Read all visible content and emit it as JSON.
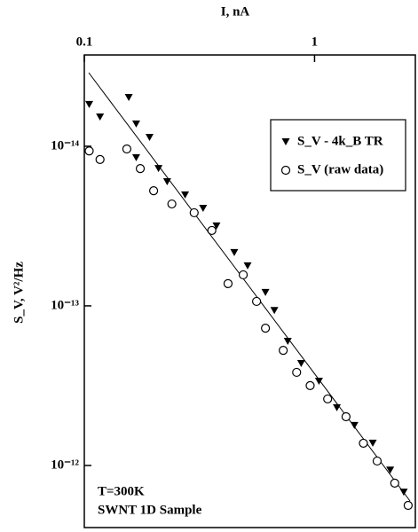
{
  "chart_data": {
    "type": "scatter",
    "x_label": "I, nA",
    "y_label": "S_V, V²/Hz",
    "annotations": [
      "T=300K",
      "SWNT 1D Sample"
    ],
    "log_x": true,
    "log_y": true,
    "legend": "upper right",
    "xlim": [
      0.1,
      2.74
    ],
    "xticks": [
      0.1,
      1
    ],
    "ylim": [
      2.68e-15,
      2.45e-12
    ],
    "yticks": [
      {
        "value": 1e-14,
        "label": "10⁻¹⁴"
      },
      {
        "value": 1e-13,
        "label": "10⁻¹³"
      },
      {
        "value": 1e-12,
        "label": "10⁻¹²"
      }
    ],
    "series": [
      {
        "name": "S_V - 4k_B TR",
        "color": "#000000",
        "marker": "triangle",
        "x": [
          0.105,
          0.117,
          0.156,
          0.168,
          0.192,
          0.168,
          0.21,
          0.229,
          0.274,
          0.328,
          0.375,
          0.448,
          0.512,
          0.612,
          0.669,
          0.765,
          0.875,
          1.045,
          1.25,
          1.49,
          1.79,
          2.13,
          2.44
        ],
        "values": [
          5.48e-15,
          6.56e-15,
          4.95e-15,
          7.26e-15,
          8.8e-15,
          1.18e-14,
          1.38e-14,
          1.67e-14,
          2.02e-14,
          2.45e-14,
          3.16e-14,
          4.64e-14,
          5.62e-14,
          8.25e-14,
          1.07e-13,
          1.67e-13,
          2.3e-13,
          2.97e-13,
          4.35e-13,
          5.62e-13,
          7.26e-13,
          1.07e-12,
          1.47e-12
        ]
      },
      {
        "name": "S_V (raw data)",
        "color": "#000000",
        "marker": "circle",
        "x": [
          0.105,
          0.117,
          0.153,
          0.175,
          0.2,
          0.24,
          0.3,
          0.358,
          0.421,
          0.49,
          0.56,
          0.612,
          0.731,
          0.836,
          0.957,
          1.14,
          1.37,
          1.63,
          1.87,
          2.23,
          2.55
        ],
        "values": [
          1.07e-14,
          1.21e-14,
          1.04e-14,
          1.38e-14,
          1.9e-14,
          2.3e-14,
          2.61e-14,
          3.37e-14,
          7.26e-14,
          6.39e-14,
          9.38e-14,
          1.38e-13,
          1.9e-13,
          2.61e-13,
          3.16e-13,
          3.83e-13,
          4.95e-13,
          7.26e-13,
          9.38e-13,
          1.29e-12,
          1.78e-12
        ]
      }
    ]
  }
}
